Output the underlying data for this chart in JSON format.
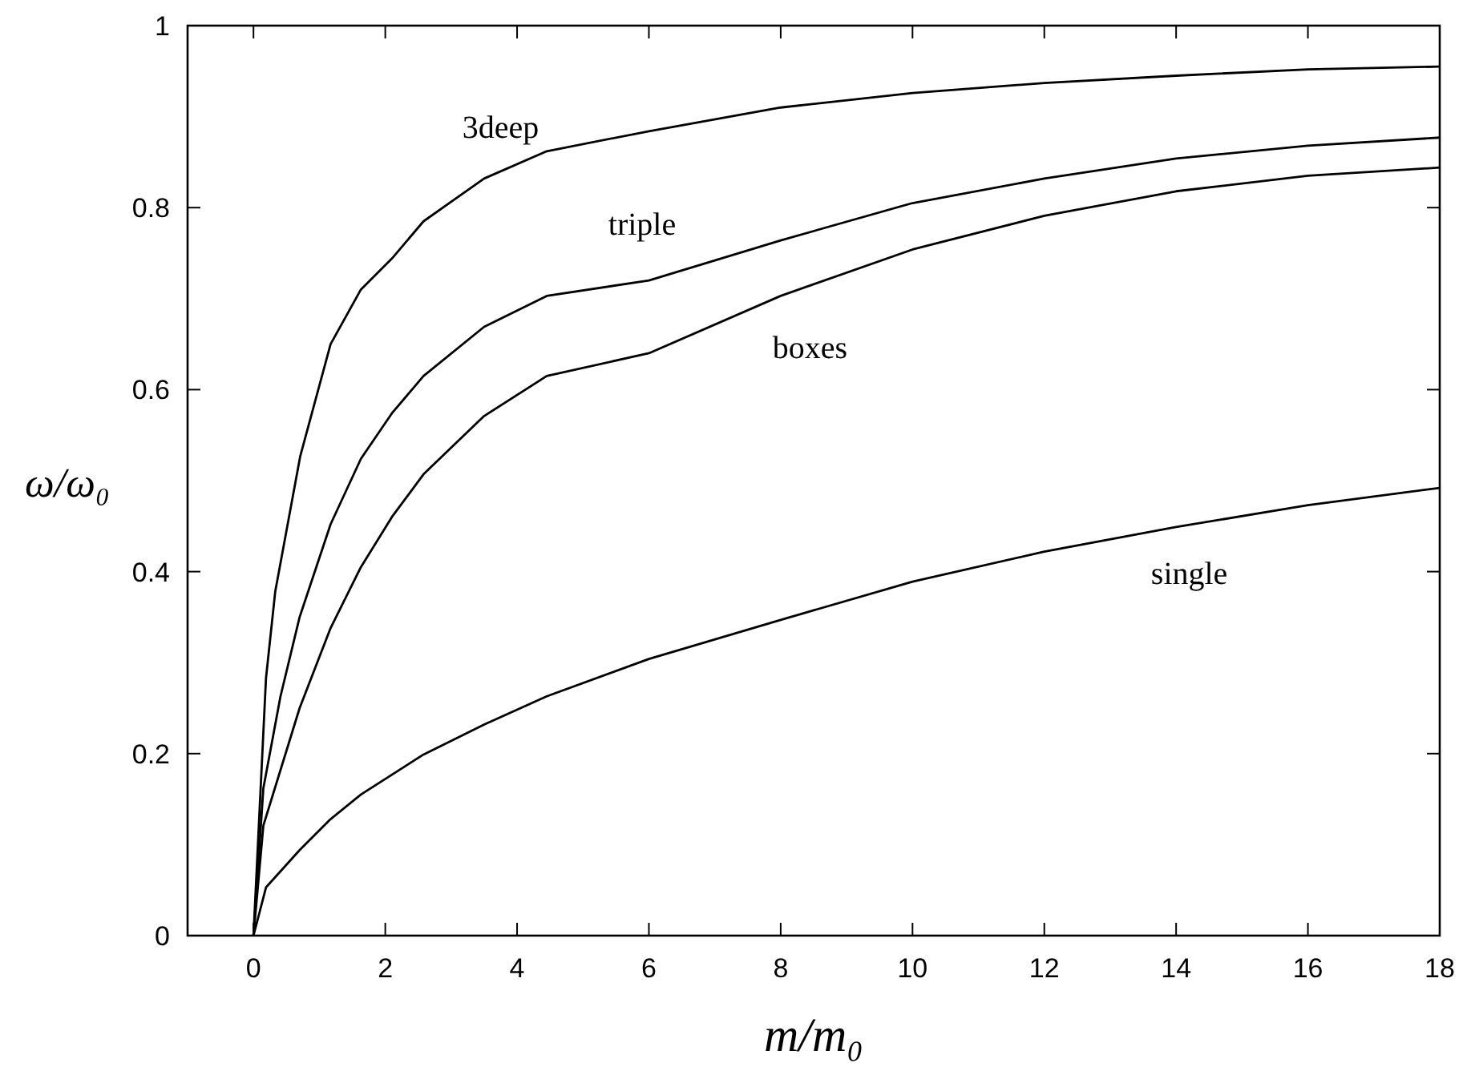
{
  "chart_data": {
    "type": "line",
    "xlabel": "m/m₀",
    "ylabel": "ω/ω₀",
    "xlim": [
      -1,
      18
    ],
    "ylim": [
      0,
      1
    ],
    "xticks": [
      0,
      2,
      4,
      6,
      8,
      10,
      12,
      14,
      16,
      18
    ],
    "yticks": [
      0,
      0.2,
      0.4,
      0.6,
      0.8,
      1
    ],
    "grid": false,
    "legend": false,
    "line_style": "solid",
    "marker": "none",
    "series": [
      {
        "name": "3deep",
        "color": "#000000",
        "x": [
          0,
          0.19,
          0.33,
          0.71,
          1.17,
          1.63,
          2.1,
          2.58,
          3.5,
          4.45,
          6,
          8,
          10,
          12,
          14,
          16,
          18
        ],
        "values": [
          0,
          0.283,
          0.378,
          0.527,
          0.65,
          0.71,
          0.744,
          0.785,
          0.832,
          0.862,
          0.884,
          0.91,
          0.926,
          0.937,
          0.945,
          0.952,
          0.955
        ]
      },
      {
        "name": "triple",
        "color": "#000000",
        "x": [
          0,
          0.15,
          0.41,
          0.7,
          1.17,
          1.63,
          2.1,
          2.58,
          3.5,
          4.45,
          6,
          8,
          10,
          12,
          14,
          16,
          18
        ],
        "values": [
          0,
          0.162,
          0.263,
          0.35,
          0.452,
          0.524,
          0.574,
          0.615,
          0.669,
          0.703,
          0.72,
          0.764,
          0.805,
          0.832,
          0.854,
          0.868,
          0.877
        ]
      },
      {
        "name": "boxes",
        "color": "#000000",
        "x": [
          0,
          0.15,
          0.7,
          1.17,
          1.63,
          2.1,
          2.58,
          3.5,
          4.45,
          6,
          8,
          10,
          12,
          14,
          16,
          18
        ],
        "values": [
          0,
          0.121,
          0.25,
          0.338,
          0.405,
          0.46,
          0.507,
          0.571,
          0.615,
          0.64,
          0.703,
          0.754,
          0.791,
          0.818,
          0.835,
          0.844
        ]
      },
      {
        "name": "single",
        "color": "#000000",
        "x": [
          0,
          0.19,
          0.7,
          1.17,
          1.63,
          2.58,
          3.5,
          4.45,
          6,
          8,
          10,
          12,
          14,
          16,
          18
        ],
        "values": [
          0,
          0.053,
          0.094,
          0.128,
          0.155,
          0.199,
          0.232,
          0.263,
          0.304,
          0.347,
          0.389,
          0.422,
          0.449,
          0.473,
          0.492
        ]
      }
    ]
  }
}
